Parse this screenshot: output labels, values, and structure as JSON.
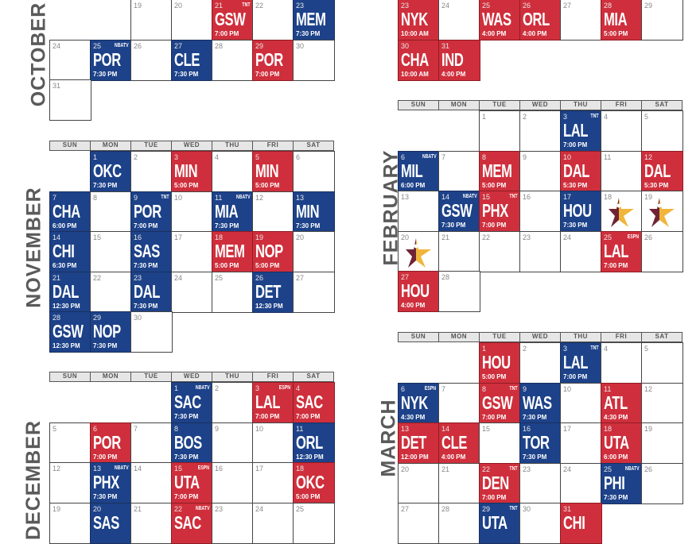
{
  "colors": {
    "blue": "#1d4289",
    "red": "#cf2f3c",
    "allstar_maroon": "#6e2434",
    "allstar_gold": "#f0b53c"
  },
  "weekdays": [
    "SUN",
    "MON",
    "TUE",
    "WED",
    "THU",
    "FRI",
    "SAT"
  ],
  "months": [
    {
      "id": "october",
      "label": "OCTOBER",
      "header": false,
      "weeks": [
        [
          null,
          null,
          {
            "d": 19
          },
          {
            "d": 20
          },
          {
            "d": 21,
            "t": "GSW",
            "time": "7:00 PM",
            "tv": "TNT",
            "c": "red"
          },
          {
            "d": 22
          },
          {
            "d": 23,
            "t": "MEM",
            "time": "7:30 PM",
            "c": "blue"
          }
        ],
        [
          {
            "d": 24
          },
          {
            "d": 25,
            "t": "POR",
            "time": "7:30 PM",
            "tv": "NBATV",
            "c": "blue"
          },
          {
            "d": 26
          },
          {
            "d": 27,
            "t": "CLE",
            "time": "7:30 PM",
            "c": "blue"
          },
          {
            "d": 28
          },
          {
            "d": 29,
            "t": "POR",
            "time": "7:00 PM",
            "c": "red"
          },
          {
            "d": 30
          }
        ],
        [
          {
            "d": 31
          }
        ]
      ]
    },
    {
      "id": "november",
      "label": "NOVEMBER",
      "header": true,
      "weeks": [
        [
          null,
          {
            "d": 1,
            "t": "OKC",
            "time": "7:30 PM",
            "c": "blue"
          },
          {
            "d": 2
          },
          {
            "d": 3,
            "t": "MIN",
            "time": "5:00 PM",
            "c": "red"
          },
          {
            "d": 4
          },
          {
            "d": 5,
            "t": "MIN",
            "time": "5:00 PM",
            "c": "red"
          },
          {
            "d": 6
          }
        ],
        [
          {
            "d": 7,
            "t": "CHA",
            "time": "6:00 PM",
            "c": "blue"
          },
          {
            "d": 8
          },
          {
            "d": 9,
            "t": "POR",
            "time": "7:00 PM",
            "tv": "TNT",
            "c": "blue"
          },
          {
            "d": 10
          },
          {
            "d": 11,
            "t": "MIA",
            "time": "7:30 PM",
            "tv": "NBATV",
            "c": "blue"
          },
          {
            "d": 12
          },
          {
            "d": 13,
            "t": "MIN",
            "time": "7:30 PM",
            "c": "blue"
          }
        ],
        [
          {
            "d": 14,
            "t": "CHI",
            "time": "6:30 PM",
            "c": "blue"
          },
          {
            "d": 15
          },
          {
            "d": 16,
            "t": "SAS",
            "time": "7:30 PM",
            "c": "blue"
          },
          {
            "d": 17
          },
          {
            "d": 18,
            "t": "MEM",
            "time": "5:00 PM",
            "c": "red"
          },
          {
            "d": 19,
            "t": "NOP",
            "time": "5:00 PM",
            "c": "red"
          },
          {
            "d": 20
          }
        ],
        [
          {
            "d": 21,
            "t": "DAL",
            "time": "12:30 PM",
            "c": "blue"
          },
          {
            "d": 22
          },
          {
            "d": 23,
            "t": "DAL",
            "time": "7:30 PM",
            "c": "blue"
          },
          {
            "d": 24
          },
          {
            "d": 25
          },
          {
            "d": 26,
            "t": "DET",
            "time": "12:30 PM",
            "c": "blue"
          },
          {
            "d": 27
          }
        ],
        [
          {
            "d": 28,
            "t": "GSW",
            "time": "12:30 PM",
            "c": "blue"
          },
          {
            "d": 29,
            "t": "NOP",
            "time": "7:30 PM",
            "c": "blue"
          },
          {
            "d": 30
          }
        ]
      ]
    },
    {
      "id": "december",
      "label": "DECEMBER",
      "header": true,
      "weeks": [
        [
          null,
          null,
          null,
          {
            "d": 1,
            "t": "SAC",
            "time": "7:30 PM",
            "tv": "NBATV",
            "c": "blue"
          },
          {
            "d": 2
          },
          {
            "d": 3,
            "t": "LAL",
            "time": "7:00 PM",
            "tv": "ESPN",
            "c": "red"
          },
          {
            "d": 4,
            "t": "SAC",
            "time": "7:00 PM",
            "c": "red"
          }
        ],
        [
          {
            "d": 5
          },
          {
            "d": 6,
            "t": "POR",
            "time": "7:00 PM",
            "c": "red"
          },
          {
            "d": 7
          },
          {
            "d": 8,
            "t": "BOS",
            "time": "7:30 PM",
            "c": "blue"
          },
          {
            "d": 9
          },
          {
            "d": 10
          },
          {
            "d": 11,
            "t": "ORL",
            "time": "12:30 PM",
            "c": "blue"
          }
        ],
        [
          {
            "d": 12
          },
          {
            "d": 13,
            "t": "PHX",
            "time": "7:30 PM",
            "tv": "NBATV",
            "c": "blue"
          },
          {
            "d": 14
          },
          {
            "d": 15,
            "t": "UTA",
            "time": "7:00 PM",
            "tv": "ESPN",
            "c": "red"
          },
          {
            "d": 16
          },
          {
            "d": 17
          },
          {
            "d": 18,
            "t": "OKC",
            "time": "5:00 PM",
            "c": "red"
          }
        ],
        [
          {
            "d": 19
          },
          {
            "d": 20,
            "t": "SAS",
            "c": "blue"
          },
          {
            "d": 21
          },
          {
            "d": 22,
            "t": "SAC",
            "tv": "NBATV",
            "c": "red"
          },
          {
            "d": 23
          },
          {
            "d": 24
          },
          {
            "d": 25
          }
        ]
      ]
    },
    {
      "id": "january",
      "label": "",
      "header": false,
      "weeks": [
        [
          {
            "d": 23,
            "t": "NYK",
            "time": "10:00 AM",
            "c": "red"
          },
          {
            "d": 24
          },
          {
            "d": 25,
            "t": "WAS",
            "time": "4:00 PM",
            "c": "red"
          },
          {
            "d": 26,
            "t": "ORL",
            "time": "4:00 PM",
            "c": "red"
          },
          {
            "d": 27
          },
          {
            "d": 28,
            "t": "MIA",
            "time": "5:00 PM",
            "c": "red"
          },
          {
            "d": 29
          }
        ],
        [
          {
            "d": 30,
            "t": "CHA",
            "time": "10:00 AM",
            "c": "red"
          },
          {
            "d": 31,
            "t": "IND",
            "time": "4:00 PM",
            "c": "red"
          }
        ]
      ]
    },
    {
      "id": "february",
      "label": "FEBRUARY",
      "header": true,
      "weeks": [
        [
          null,
          null,
          {
            "d": 1
          },
          {
            "d": 2
          },
          {
            "d": 3,
            "t": "LAL",
            "time": "7:00 PM",
            "tv": "TNT",
            "c": "blue"
          },
          {
            "d": 4
          },
          {
            "d": 5
          }
        ],
        [
          {
            "d": 6,
            "t": "MIL",
            "time": "6:00 PM",
            "tv": "NBATV",
            "c": "blue"
          },
          {
            "d": 7
          },
          {
            "d": 8,
            "t": "MEM",
            "time": "5:00 PM",
            "c": "red"
          },
          {
            "d": 9
          },
          {
            "d": 10,
            "t": "DAL",
            "time": "5:30 PM",
            "c": "red"
          },
          {
            "d": 11
          },
          {
            "d": 12,
            "t": "DAL",
            "time": "5:30 PM",
            "c": "red"
          }
        ],
        [
          {
            "d": 13
          },
          {
            "d": 14,
            "t": "GSW",
            "time": "7:30 PM",
            "tv": "NBATV",
            "c": "blue"
          },
          {
            "d": 15,
            "t": "PHX",
            "time": "7:00 PM",
            "tv": "TNT",
            "c": "red"
          },
          {
            "d": 16
          },
          {
            "d": 17,
            "t": "HOU",
            "time": "7:30 PM",
            "c": "blue"
          },
          {
            "d": 18,
            "allstar": true
          },
          {
            "d": 19,
            "allstar": true
          }
        ],
        [
          {
            "d": 20,
            "allstar": true
          },
          {
            "d": 21
          },
          {
            "d": 22
          },
          {
            "d": 23
          },
          {
            "d": 24
          },
          {
            "d": 25,
            "t": "LAL",
            "time": "7:00 PM",
            "tv": "ESPN",
            "c": "red"
          },
          {
            "d": 26
          }
        ],
        [
          {
            "d": 27,
            "t": "HOU",
            "time": "4:00 PM",
            "c": "red"
          },
          {
            "d": 28
          }
        ]
      ]
    },
    {
      "id": "march",
      "label": "MARCH",
      "header": true,
      "weeks": [
        [
          null,
          null,
          {
            "d": 1,
            "t": "HOU",
            "time": "5:00 PM",
            "c": "red"
          },
          {
            "d": 2
          },
          {
            "d": 3,
            "t": "LAL",
            "time": "7:00 PM",
            "tv": "TNT",
            "c": "blue"
          },
          {
            "d": 4
          },
          {
            "d": 5
          }
        ],
        [
          {
            "d": 6,
            "t": "NYK",
            "time": "4:30 PM",
            "tv": "ESPN",
            "c": "blue"
          },
          {
            "d": 7
          },
          {
            "d": 8,
            "t": "GSW",
            "time": "7:00 PM",
            "tv": "TNT",
            "c": "red"
          },
          {
            "d": 9,
            "t": "WAS",
            "time": "7:30 PM",
            "c": "blue"
          },
          {
            "d": 10
          },
          {
            "d": 11,
            "t": "ATL",
            "time": "4:30 PM",
            "c": "red"
          },
          {
            "d": 12
          }
        ],
        [
          {
            "d": 13,
            "t": "DET",
            "time": "12:00 PM",
            "c": "red"
          },
          {
            "d": 14,
            "t": "CLE",
            "time": "4:00 PM",
            "c": "red"
          },
          {
            "d": 15
          },
          {
            "d": 16,
            "t": "TOR",
            "time": "7:30 PM",
            "c": "blue"
          },
          {
            "d": 17
          },
          {
            "d": 18,
            "t": "UTA",
            "time": "6:00 PM",
            "c": "red"
          },
          {
            "d": 19
          }
        ],
        [
          {
            "d": 20
          },
          {
            "d": 21
          },
          {
            "d": 22,
            "t": "DEN",
            "time": "7:00 PM",
            "tv": "TNT",
            "c": "red"
          },
          {
            "d": 23
          },
          {
            "d": 24
          },
          {
            "d": 25,
            "t": "PHI",
            "time": "7:30 PM",
            "tv": "NBATV",
            "c": "blue"
          },
          {
            "d": 26
          }
        ],
        [
          {
            "d": 27
          },
          {
            "d": 28
          },
          {
            "d": 29,
            "t": "UTA",
            "tv": "TNT",
            "c": "blue"
          },
          {
            "d": 30
          },
          {
            "d": 31,
            "t": "CHI",
            "c": "red"
          }
        ]
      ]
    }
  ]
}
